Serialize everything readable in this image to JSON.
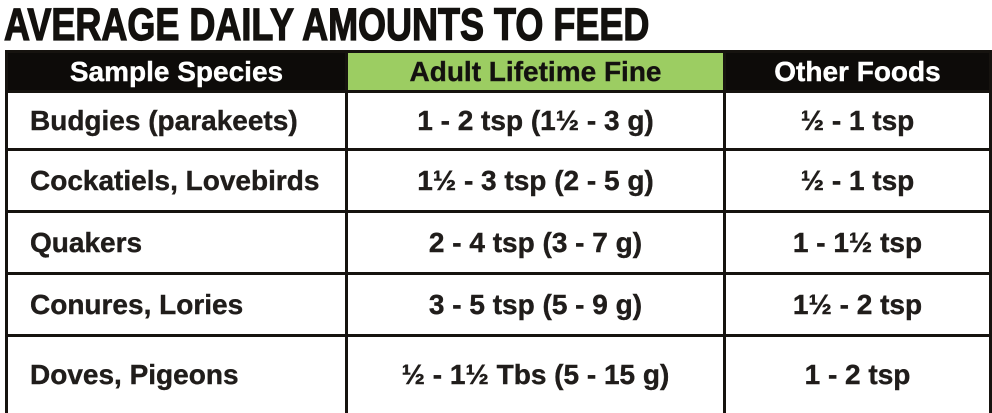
{
  "title": "AVERAGE DAILY AMOUNTS TO FEED",
  "table": {
    "headers": {
      "species": "Sample Species",
      "adult": "Adult Lifetime Fine",
      "other": "Other Foods"
    },
    "rows": [
      {
        "species": "Budgies (parakeets)",
        "adult": "1 - 2 tsp (1½ - 3 g)",
        "other": "½ - 1 tsp"
      },
      {
        "species": "Cockatiels, Lovebirds",
        "adult": "1½ - 3 tsp (2 - 5 g)",
        "other": "½ - 1 tsp"
      },
      {
        "species": "Quakers",
        "adult": "2 - 4 tsp (3 - 7 g)",
        "other": "1 - 1½ tsp"
      },
      {
        "species": "Conures, Lories",
        "adult": "3 - 5 tsp (5 - 9 g)",
        "other": "1½ - 2 tsp"
      },
      {
        "species": "Doves, Pigeons",
        "adult": "½ - 1½ Tbs (5 - 15 g)",
        "other": "1 - 2 tsp"
      }
    ],
    "colors": {
      "accent_green": "#9ccd62",
      "header_black": "#0d0b09",
      "border": "#16130f",
      "text": "#201d1b"
    }
  },
  "chart_data": {
    "type": "table",
    "title": "AVERAGE DAILY AMOUNTS TO FEED",
    "columns": [
      "Sample Species",
      "Adult Lifetime Fine",
      "Other Foods"
    ],
    "rows": [
      [
        "Budgies (parakeets)",
        "1 - 2 tsp (1½ - 3 g)",
        "½ - 1 tsp"
      ],
      [
        "Cockatiels, Lovebirds",
        "1½ - 3 tsp (2 - 5 g)",
        "½ - 1 tsp"
      ],
      [
        "Quakers",
        "2 - 4 tsp (3 - 7 g)",
        "1 - 1½ tsp"
      ],
      [
        "Conures, Lories",
        "3 - 5 tsp (5 - 9 g)",
        "1½ - 2 tsp"
      ],
      [
        "Doves, Pigeons",
        "½ - 1½ Tbs (5 - 15 g)",
        "1 - 2 tsp"
      ]
    ]
  }
}
